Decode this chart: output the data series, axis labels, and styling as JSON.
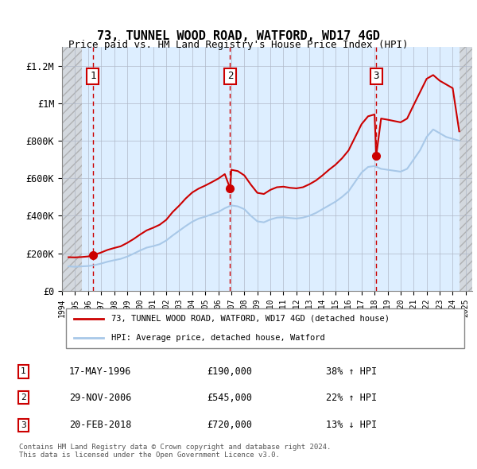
{
  "title": "73, TUNNEL WOOD ROAD, WATFORD, WD17 4GD",
  "subtitle": "Price paid vs. HM Land Registry's House Price Index (HPI)",
  "ylabel_ticks": [
    "£0",
    "£200K",
    "£400K",
    "£600K",
    "£800K",
    "£1M",
    "£1.2M"
  ],
  "ytick_values": [
    0,
    200000,
    400000,
    600000,
    800000,
    1000000,
    1200000
  ],
  "ylim": [
    0,
    1300000
  ],
  "xlim_start": 1994.0,
  "xlim_end": 2025.5,
  "x_ticks": [
    1994,
    1995,
    1996,
    1997,
    1998,
    1999,
    2000,
    2001,
    2002,
    2003,
    2004,
    2005,
    2006,
    2007,
    2008,
    2009,
    2010,
    2011,
    2012,
    2013,
    2014,
    2015,
    2016,
    2017,
    2018,
    2019,
    2020,
    2021,
    2022,
    2023,
    2024,
    2025
  ],
  "hpi_line_color": "#a8c8e8",
  "price_line_color": "#cc0000",
  "dashed_vline_color": "#cc0000",
  "hatch_color": "#c0c0c0",
  "background_plot": "#ddeeff",
  "purchases": [
    {
      "label": "1",
      "year": 1996.38,
      "price": 190000,
      "date": "17-MAY-1996",
      "amount": "£190,000",
      "hpi_pct": "38% ↑ HPI"
    },
    {
      "label": "2",
      "year": 2006.91,
      "price": 545000,
      "date": "29-NOV-2006",
      "amount": "£545,000",
      "hpi_pct": "22% ↑ HPI"
    },
    {
      "label": "3",
      "year": 2018.13,
      "price": 720000,
      "date": "20-FEB-2018",
      "amount": "£720,000",
      "hpi_pct": "13% ↓ HPI"
    }
  ],
  "hpi_data": {
    "years": [
      1994.5,
      1995.0,
      1995.5,
      1996.0,
      1996.5,
      1997.0,
      1997.5,
      1998.0,
      1998.5,
      1999.0,
      1999.5,
      2000.0,
      2000.5,
      2001.0,
      2001.5,
      2002.0,
      2002.5,
      2003.0,
      2003.5,
      2004.0,
      2004.5,
      2005.0,
      2005.5,
      2006.0,
      2006.5,
      2007.0,
      2007.5,
      2008.0,
      2008.5,
      2009.0,
      2009.5,
      2010.0,
      2010.5,
      2011.0,
      2011.5,
      2012.0,
      2012.5,
      2013.0,
      2013.5,
      2014.0,
      2014.5,
      2015.0,
      2015.5,
      2016.0,
      2016.5,
      2017.0,
      2017.5,
      2018.0,
      2018.5,
      2019.0,
      2019.5,
      2020.0,
      2020.5,
      2021.0,
      2021.5,
      2022.0,
      2022.5,
      2023.0,
      2023.5,
      2024.0,
      2024.5
    ],
    "values": [
      130000,
      128000,
      130000,
      132000,
      137000,
      145000,
      155000,
      163000,
      170000,
      182000,
      198000,
      215000,
      230000,
      238000,
      248000,
      268000,
      295000,
      320000,
      345000,
      368000,
      385000,
      395000,
      408000,
      420000,
      440000,
      455000,
      450000,
      435000,
      400000,
      370000,
      365000,
      380000,
      390000,
      392000,
      388000,
      385000,
      390000,
      400000,
      415000,
      435000,
      455000,
      475000,
      500000,
      530000,
      580000,
      630000,
      660000,
      665000,
      650000,
      645000,
      640000,
      635000,
      650000,
      700000,
      750000,
      820000,
      860000,
      840000,
      820000,
      810000,
      800000
    ]
  },
  "price_data": {
    "years": [
      1994.5,
      1995.0,
      1995.5,
      1996.0,
      1996.38,
      1996.5,
      1997.0,
      1997.5,
      1998.0,
      1998.5,
      1999.0,
      1999.5,
      2000.0,
      2000.5,
      2001.0,
      2001.5,
      2002.0,
      2002.5,
      2003.0,
      2003.5,
      2004.0,
      2004.5,
      2005.0,
      2005.5,
      2006.0,
      2006.5,
      2006.91,
      2007.0,
      2007.5,
      2008.0,
      2008.5,
      2009.0,
      2009.5,
      2010.0,
      2010.5,
      2011.0,
      2011.5,
      2012.0,
      2012.5,
      2013.0,
      2013.5,
      2014.0,
      2014.5,
      2015.0,
      2015.5,
      2016.0,
      2016.5,
      2017.0,
      2017.5,
      2018.0,
      2018.13,
      2018.5,
      2019.0,
      2019.5,
      2020.0,
      2020.5,
      2021.0,
      2021.5,
      2022.0,
      2022.5,
      2023.0,
      2023.5,
      2024.0,
      2024.5
    ],
    "values": [
      179000,
      178000,
      180000,
      183000,
      190000,
      192000,
      204000,
      218000,
      228000,
      237000,
      255000,
      276000,
      300000,
      322000,
      336000,
      352000,
      378000,
      420000,
      454000,
      492000,
      524000,
      545000,
      561000,
      579000,
      598000,
      622000,
      545000,
      645000,
      638000,
      615000,
      566000,
      522000,
      516000,
      538000,
      552000,
      555000,
      549000,
      546000,
      552000,
      568000,
      588000,
      615000,
      645000,
      672000,
      706000,
      748000,
      818000,
      888000,
      930000,
      940000,
      720000,
      918000,
      912000,
      905000,
      898000,
      918000,
      990000,
      1060000,
      1130000,
      1150000,
      1120000,
      1100000,
      1080000,
      850000
    ]
  },
  "legend_label_red": "73, TUNNEL WOOD ROAD, WATFORD, WD17 4GD (detached house)",
  "legend_label_blue": "HPI: Average price, detached house, Watford",
  "footer": "Contains HM Land Registry data © Crown copyright and database right 2024.\nThis data is licensed under the Open Government Licence v3.0.",
  "hatch_region_end": 1995.5
}
